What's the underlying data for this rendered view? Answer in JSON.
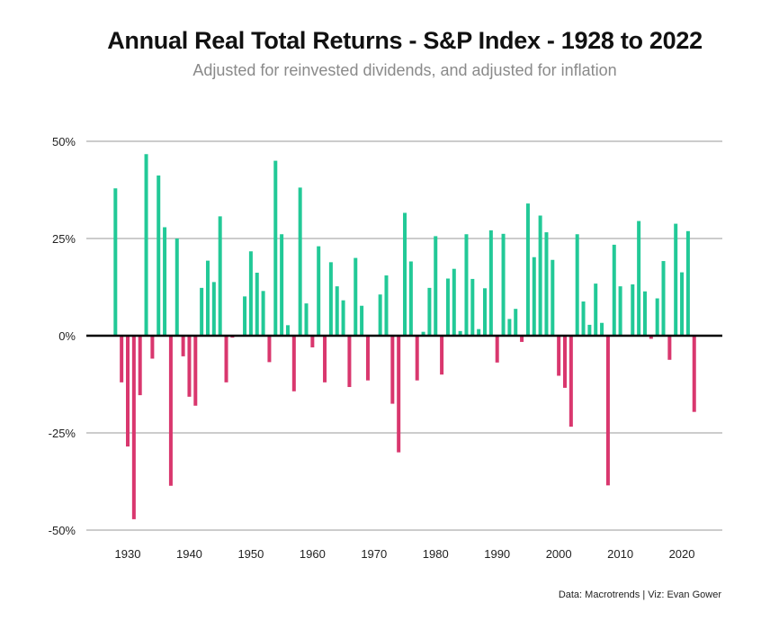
{
  "chart_data": {
    "type": "bar",
    "title": "Annual Real Total Returns - S&P Index - 1928 to 2022",
    "subtitle": "Adjusted for reinvested dividends, and adjusted for inflation",
    "source": "Data: Macrotrends | Viz: Evan Gower",
    "xlabel": "",
    "ylabel": "",
    "ylim": [
      -50,
      50
    ],
    "y_ticks": [
      50,
      25,
      0,
      -25,
      -50
    ],
    "y_tick_labels": [
      "50%",
      "25%",
      "0%",
      "-25%",
      "-50%"
    ],
    "x_ticks": [
      1930,
      1940,
      1950,
      1960,
      1970,
      1980,
      1990,
      2000,
      2010,
      2020
    ],
    "x_tick_labels": [
      "1930",
      "1940",
      "1950",
      "1960",
      "1970",
      "1980",
      "1990",
      "2000",
      "2010",
      "2020"
    ],
    "grid": true,
    "legend": "none",
    "colors": {
      "positive": "#22c997",
      "negative": "#d9376e",
      "grid": "#cccccc",
      "zero_line": "#000000"
    },
    "years": [
      1928,
      1929,
      1930,
      1931,
      1932,
      1933,
      1934,
      1935,
      1936,
      1937,
      1938,
      1939,
      1940,
      1941,
      1942,
      1943,
      1944,
      1945,
      1946,
      1947,
      1948,
      1949,
      1950,
      1951,
      1952,
      1953,
      1954,
      1955,
      1956,
      1957,
      1958,
      1959,
      1960,
      1961,
      1962,
      1963,
      1964,
      1965,
      1966,
      1967,
      1968,
      1969,
      1970,
      1971,
      1972,
      1973,
      1974,
      1975,
      1976,
      1977,
      1978,
      1979,
      1980,
      1981,
      1982,
      1983,
      1984,
      1985,
      1986,
      1987,
      1988,
      1989,
      1990,
      1991,
      1992,
      1993,
      1994,
      1995,
      1996,
      1997,
      1998,
      1999,
      2000,
      2001,
      2002,
      2003,
      2004,
      2005,
      2006,
      2007,
      2008,
      2009,
      2010,
      2011,
      2012,
      2013,
      2014,
      2015,
      2016,
      2017,
      2018,
      2019,
      2020,
      2021,
      2022
    ],
    "values": [
      37.9,
      -12.0,
      -28.5,
      -47.2,
      -15.3,
      46.7,
      -5.9,
      41.2,
      27.9,
      -38.6,
      25.0,
      -5.3,
      -15.7,
      -18.0,
      12.3,
      19.3,
      13.8,
      30.7,
      -12.0,
      -0.5,
      -0.2,
      10.1,
      21.7,
      16.2,
      11.5,
      -6.8,
      45.0,
      26.1,
      2.7,
      -14.3,
      38.1,
      8.3,
      -3.0,
      23.0,
      -12.0,
      18.9,
      12.7,
      9.1,
      -13.2,
      20.0,
      7.7,
      -11.5,
      -0.1,
      10.6,
      15.5,
      -17.5,
      -30.0,
      31.6,
      19.1,
      -11.5,
      1.0,
      12.3,
      25.6,
      -10.0,
      14.7,
      17.2,
      1.2,
      26.1,
      14.6,
      1.7,
      12.2,
      27.1,
      -6.9,
      26.2,
      4.3,
      6.9,
      -1.6,
      34.0,
      20.2,
      30.9,
      26.6,
      19.5,
      -10.3,
      -13.4,
      -23.4,
      26.1,
      8.8,
      2.8,
      13.4,
      3.3,
      -38.5,
      23.4,
      12.7,
      0.0,
      13.2,
      29.5,
      11.4,
      -0.8,
      9.6,
      19.2,
      -6.2,
      28.8,
      16.3,
      26.9,
      -19.6
    ]
  }
}
